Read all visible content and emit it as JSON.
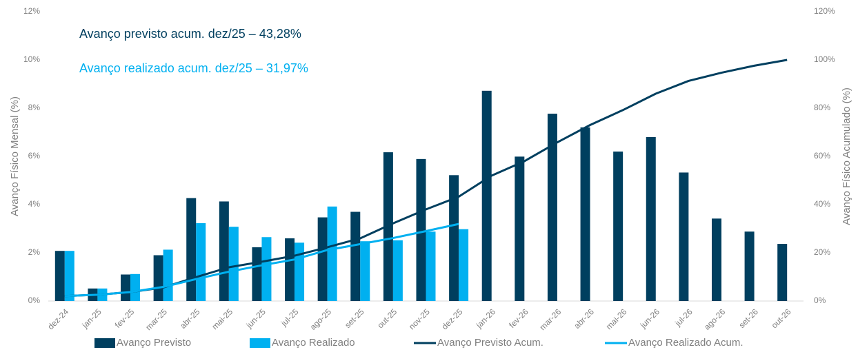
{
  "chart_data": {
    "type": "bar-line",
    "annotations": [
      "Avanço previsto acum. dez/25 – 43,28%",
      "Avanço realizado acum. dez/25 – 31,97%"
    ],
    "ylabel": "Avanço Físico Mensal (%)",
    "y2label": "Avanço Físico Acumulado (%)",
    "categories": [
      "dez-24",
      "jan-25",
      "fev-25",
      "mar-25",
      "abr-25",
      "mai-25",
      "jun-25",
      "jul-25",
      "ago-25",
      "set-25",
      "out-25",
      "nov-25",
      "dez-25",
      "jan-26",
      "fev-26",
      "mar-26",
      "abr-26",
      "mai-26",
      "jun-26",
      "jul-26",
      "ago-26",
      "set-26",
      "out-26"
    ],
    "series": [
      {
        "name": "Avanço Previsto",
        "color": "#003f5f",
        "kind": "bar",
        "values": [
          2.08,
          0.52,
          1.1,
          1.9,
          4.27,
          4.13,
          2.23,
          2.6,
          3.47,
          3.7,
          6.17,
          5.89,
          5.22,
          8.72,
          5.99,
          7.77,
          7.2,
          6.2,
          6.8,
          5.33,
          3.42,
          2.88,
          2.37
        ]
      },
      {
        "name": "Avanço Realizado",
        "color": "#00b0f0",
        "kind": "bar",
        "values": [
          2.08,
          0.52,
          1.12,
          2.13,
          3.23,
          3.08,
          2.65,
          2.42,
          3.92,
          2.48,
          2.52,
          2.88,
          2.98,
          null,
          null,
          null,
          null,
          null,
          null,
          null,
          null,
          null,
          null
        ]
      },
      {
        "name": "Avanço Previsto Acum.",
        "color": "#003f5f",
        "kind": "line",
        "axis": "y2",
        "values": [
          2.08,
          2.6,
          3.7,
          5.6,
          9.9,
          14,
          16.3,
          18.8,
          22.3,
          26,
          32.2,
          38,
          43.28,
          52,
          58,
          65.8,
          73,
          79.2,
          86,
          91.3,
          94.7,
          97.6,
          100
        ]
      },
      {
        "name": "Avanço Realizado Acum.",
        "color": "#00b0f0",
        "kind": "line",
        "axis": "y2",
        "values": [
          2.08,
          2.6,
          3.72,
          5.85,
          9.08,
          12.16,
          14.81,
          17.23,
          21.15,
          23.6,
          26.12,
          29,
          31.97,
          null,
          null,
          null,
          null,
          null,
          null,
          null,
          null,
          null,
          null
        ]
      }
    ],
    "ylim": [
      0,
      12
    ],
    "yticks": [
      {
        "value": 0,
        "label": "0%"
      },
      {
        "value": 2,
        "label": "2%"
      },
      {
        "value": 4,
        "label": "4%"
      },
      {
        "value": 6,
        "label": "6%"
      },
      {
        "value": 8,
        "label": "8%"
      },
      {
        "value": 10,
        "label": "10%"
      },
      {
        "value": 12,
        "label": "12%"
      }
    ],
    "y2lim": [
      0,
      120
    ],
    "y2ticks": [
      {
        "value": 0,
        "label": "0%"
      },
      {
        "value": 20,
        "label": "20%"
      },
      {
        "value": 40,
        "label": "40%"
      },
      {
        "value": 60,
        "label": "60%"
      },
      {
        "value": 80,
        "label": "80%"
      },
      {
        "value": 100,
        "label": "100%"
      },
      {
        "value": 120,
        "label": "120%"
      }
    ],
    "legend": "bottom"
  }
}
